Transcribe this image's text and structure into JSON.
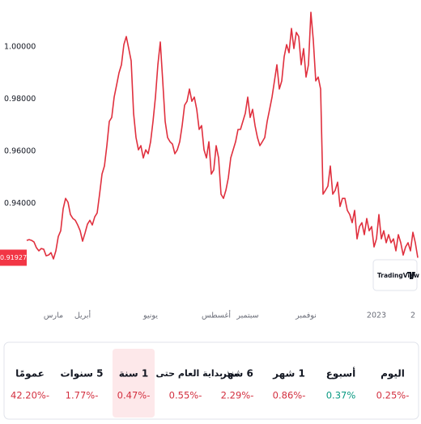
{
  "chart_data": {
    "type": "line",
    "color": "#e0303e",
    "grid": false,
    "ylim": [
      0.9002,
      1.018
    ],
    "yticks": [
      {
        "value": 1.0,
        "label": "1.00000"
      },
      {
        "value": 0.98,
        "label": "0.98000"
      },
      {
        "value": 0.96,
        "label": "0.96000"
      },
      {
        "value": 0.94,
        "label": "0.94000"
      }
    ],
    "categories": [
      null,
      null,
      null,
      null,
      null,
      null,
      null,
      null,
      null,
      null,
      null,
      "مارس",
      null,
      null,
      null,
      null,
      null,
      null,
      null,
      null,
      null,
      null,
      null,
      "أبريل",
      null,
      null,
      null,
      null,
      null,
      null,
      null,
      null,
      null,
      null,
      null,
      null,
      null,
      null,
      null,
      null,
      null,
      null,
      null,
      null,
      null,
      null,
      null,
      null,
      null,
      null,
      null,
      "يونيو",
      null,
      null,
      null,
      null,
      null,
      null,
      null,
      null,
      null,
      null,
      null,
      null,
      null,
      null,
      null,
      null,
      null,
      null,
      null,
      null,
      null,
      null,
      null,
      null,
      null,
      null,
      "أغسطس",
      null,
      null,
      null,
      null,
      null,
      null,
      null,
      null,
      null,
      null,
      null,
      null,
      "سبتمبر",
      null,
      null,
      null,
      null,
      null,
      null,
      null,
      null,
      null,
      null,
      null,
      null,
      null,
      null,
      null,
      null,
      null,
      null,
      null,
      null,
      null,
      null,
      null,
      "نوفمبر",
      null,
      null,
      null,
      null,
      null,
      null,
      null,
      null,
      null,
      null,
      null,
      null,
      null,
      null,
      null,
      null,
      null,
      null,
      null,
      null,
      null,
      null,
      null,
      null,
      null,
      null,
      null,
      null,
      "2023",
      null,
      null,
      null,
      null,
      null,
      null,
      null,
      null,
      null,
      null,
      null,
      null,
      null,
      null,
      "2",
      null,
      null
    ],
    "values": [
      0.9259,
      0.9262,
      0.9259,
      0.9253,
      0.9231,
      0.9219,
      0.9228,
      0.9225,
      0.92,
      0.9203,
      0.9212,
      0.9188,
      0.9219,
      0.9274,
      0.9296,
      0.938,
      0.942,
      0.9405,
      0.9358,
      0.9343,
      0.9336,
      0.9318,
      0.9296,
      0.9256,
      0.9287,
      0.9321,
      0.9336,
      0.9318,
      0.9349,
      0.9364,
      0.9436,
      0.9513,
      0.9544,
      0.9622,
      0.9715,
      0.973,
      0.9808,
      0.9854,
      0.9901,
      0.9932,
      1.0009,
      1.004,
      0.9994,
      0.9947,
      0.9746,
      0.9653,
      0.9606,
      0.9622,
      0.9575,
      0.9606,
      0.9591,
      0.9637,
      0.9715,
      0.9808,
      0.9932,
      1.0019,
      0.987,
      0.9715,
      0.9653,
      0.9637,
      0.9628,
      0.9591,
      0.9606,
      0.9637,
      0.9699,
      0.9777,
      0.9792,
      0.9839,
      0.9792,
      0.9808,
      0.9761,
      0.9684,
      0.9699,
      0.9606,
      0.9575,
      0.9637,
      0.9513,
      0.9529,
      0.9622,
      0.9575,
      0.9436,
      0.942,
      0.9451,
      0.9498,
      0.9575,
      0.9606,
      0.9637,
      0.9684,
      0.9684,
      0.9715,
      0.9746,
      0.9808,
      0.973,
      0.9761,
      0.9699,
      0.9653,
      0.9622,
      0.9637,
      0.9653,
      0.9715,
      0.9761,
      0.9808,
      0.987,
      0.9932,
      0.9839,
      0.987,
      0.9963,
      1.0009,
      0.9978,
      1.0071,
      0.9994,
      1.0056,
      1.004,
      0.9932,
      0.9994,
      0.9885,
      0.9932,
      1.0133,
      1.0025,
      0.987,
      0.9885,
      0.9839,
      0.9436,
      0.9451,
      0.9467,
      0.9544,
      0.9436,
      0.9451,
      0.9482,
      0.9389,
      0.942,
      0.942,
      0.9374,
      0.9358,
      0.9327,
      0.9374,
      0.9265,
      0.9312,
      0.9327,
      0.9281,
      0.9343,
      0.9296,
      0.9312,
      0.9234,
      0.9265,
      0.9358,
      0.9265,
      0.9296,
      0.925,
      0.9281,
      0.925,
      0.9265,
      0.9219,
      0.9281,
      0.925,
      0.9203,
      0.9234,
      0.925,
      0.9219,
      0.929,
      0.925,
      0.91927
    ],
    "last_color": "#f23645",
    "branding": "TradingView"
  },
  "performance": [
    {
      "label": "اليوم",
      "value": "0.25%-",
      "color": "#d32f3f"
    },
    {
      "label": "أسبوع",
      "value": "0.37%",
      "color": "#089981"
    },
    {
      "label": "1 شهر",
      "value": "0.86%-",
      "color": "#d32f3f"
    },
    {
      "label": "6 شهر",
      "value": "2.29%-",
      "color": "#d32f3f"
    },
    {
      "label": "منذ بداية العام حتى اليوم",
      "value": "0.55%-",
      "color": "#d32f3f"
    },
    {
      "label": "1 سنة",
      "value": "0.47%-",
      "color": "#d32f3f",
      "selected": true
    },
    {
      "label": "5 سنوات",
      "value": "1.77%-",
      "color": "#d32f3f"
    },
    {
      "label": "عمومًا",
      "value": "42.20%-",
      "color": "#d32f3f"
    }
  ]
}
